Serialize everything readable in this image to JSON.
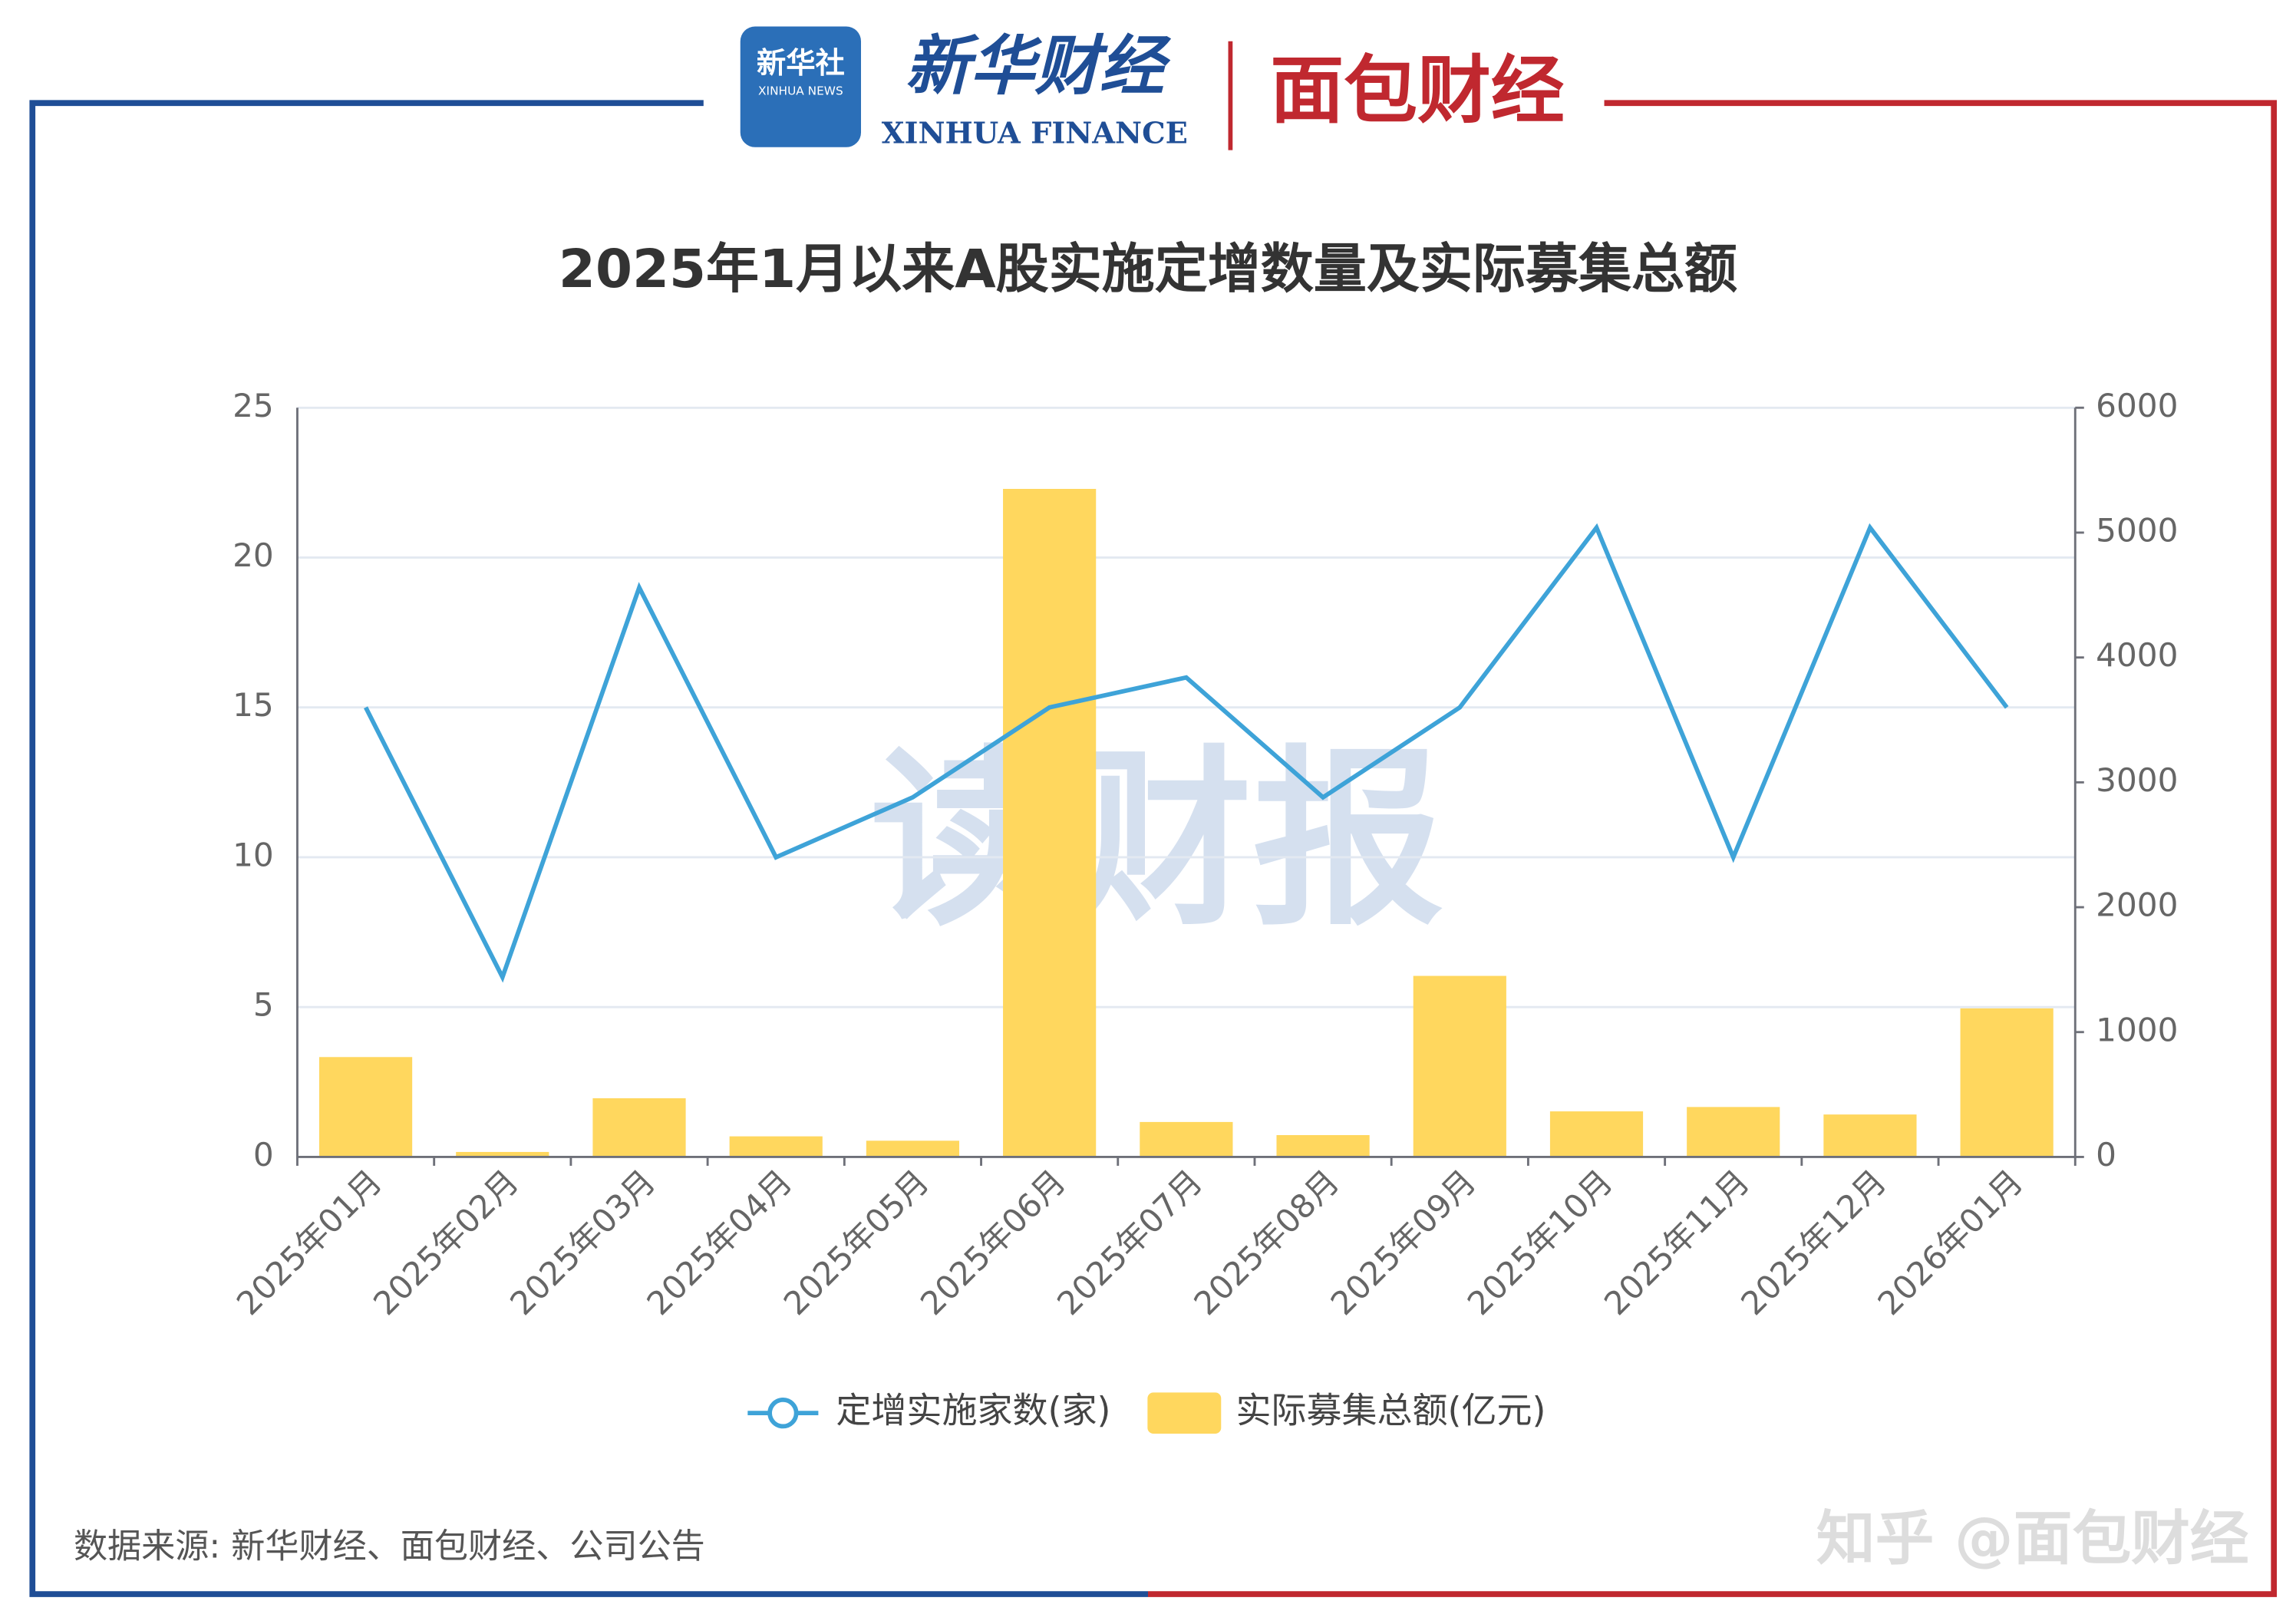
{
  "header": {
    "agency": "新华社",
    "agency_en": "XINHUA NEWS",
    "brand": "新华财经",
    "brand_en": "XINHUA FINANCE",
    "partner": "面包财经"
  },
  "watermark": "读财报",
  "chart_data": {
    "type": "bar-line",
    "title": "2025年1月以来A股实施定增数量及实际募集总额",
    "categories": [
      "2025年01月",
      "2025年02月",
      "2025年03月",
      "2025年04月",
      "2025年05月",
      "2025年06月",
      "2025年07月",
      "2025年08月",
      "2025年09月",
      "2025年10月",
      "2025年11月",
      "2025年12月",
      "2026年01月"
    ],
    "series": [
      {
        "name": "定增实施家数(家)",
        "type": "line",
        "color": "#3ea3d8",
        "axis": "y",
        "values": [
          15,
          6,
          19,
          10,
          12,
          15,
          16,
          12,
          15,
          21,
          10,
          21,
          15
        ]
      },
      {
        "name": "实际募集总额(亿元)",
        "type": "bar",
        "color": "#ffd75e",
        "axis": "y2",
        "values": [
          800,
          40,
          470,
          165,
          130,
          5350,
          280,
          175,
          1450,
          365,
          400,
          340,
          1190
        ]
      }
    ],
    "ylim": [
      0,
      25
    ],
    "yticks": [
      0,
      5,
      10,
      15,
      20,
      25
    ],
    "y2lim": [
      0,
      6000
    ],
    "y2ticks": [
      0,
      1000,
      2000,
      3000,
      4000,
      5000,
      6000
    ],
    "grid": true,
    "legend": "bottom"
  },
  "footer": {
    "source": "数据来源: 新华财经、面包财经、公司公告",
    "credit": "知乎 @面包财经"
  }
}
